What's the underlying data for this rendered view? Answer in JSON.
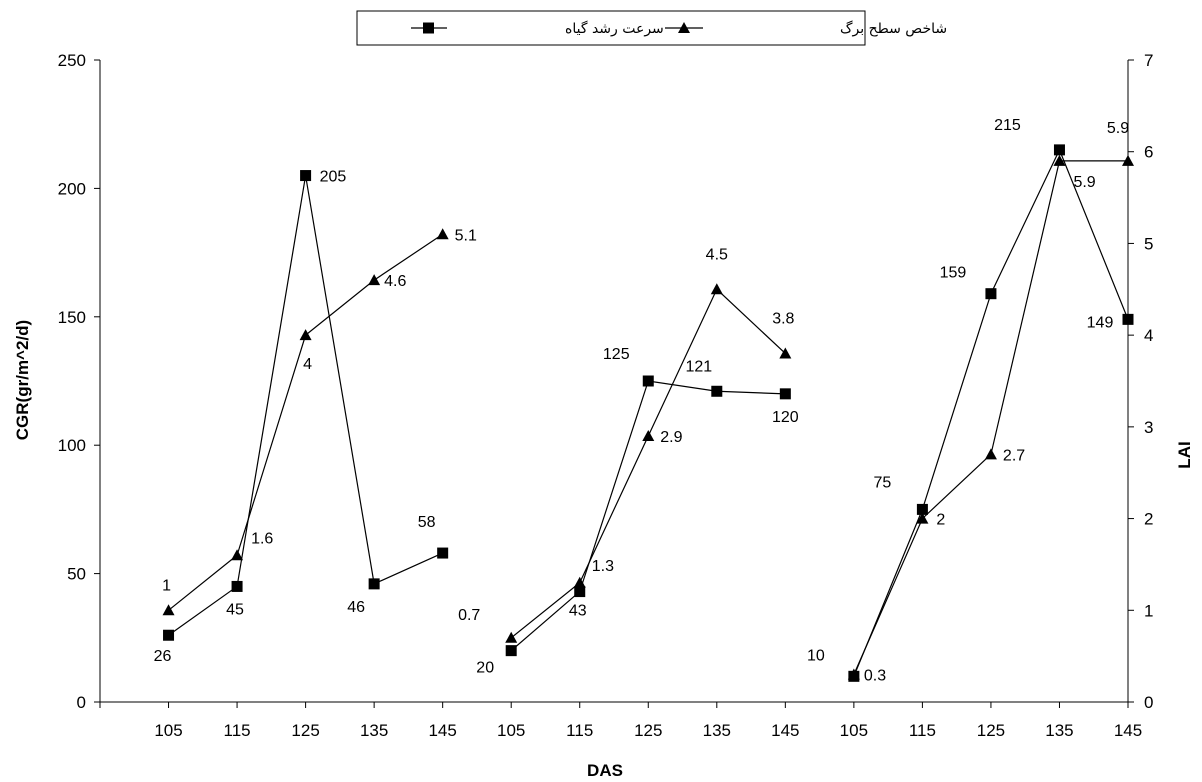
{
  "chart_data": {
    "type": "line",
    "xlabel": "DAS",
    "ylabel_left": "CGR(gr/m^2/d)",
    "ylabel_right": "LAI",
    "ylim_left": [
      0,
      250
    ],
    "ylim_right": [
      0,
      7
    ],
    "yticks_left": [
      "0",
      "50",
      "100",
      "150",
      "200",
      "250"
    ],
    "yticks_right": [
      "0",
      "1",
      "2",
      "3",
      "4",
      "5",
      "6",
      "7"
    ],
    "x_tick_labels": [
      "105",
      "115",
      "125",
      "135",
      "145"
    ],
    "legend": {
      "position": "top-center",
      "items": [
        {
          "label": "سرعت رشد گیاه",
          "marker": "square"
        },
        {
          "label": "شاخص سطح برگ",
          "marker": "triangle"
        }
      ]
    },
    "groups": [
      {
        "x": [
          105,
          115,
          125,
          135,
          145
        ],
        "cgr": [
          26,
          45,
          205,
          46,
          58
        ],
        "lai": [
          1,
          1.6,
          4,
          4.6,
          5.1
        ],
        "cgr_labels": [
          "26",
          "45",
          "205",
          "46",
          "58"
        ],
        "lai_labels": [
          "1",
          "1.6",
          "4",
          "4.6",
          "5.1"
        ]
      },
      {
        "x": [
          105,
          115,
          125,
          135,
          145
        ],
        "cgr": [
          20,
          43,
          125,
          121,
          120
        ],
        "lai": [
          0.7,
          1.3,
          2.9,
          4.5,
          3.8
        ],
        "cgr_labels": [
          "20",
          "43",
          "125",
          "121",
          "120"
        ],
        "lai_labels": [
          "0.7",
          "1.3",
          "2.9",
          "4.5",
          "3.8"
        ]
      },
      {
        "x": [
          105,
          115,
          125,
          135,
          145
        ],
        "cgr": [
          10,
          75,
          159,
          215,
          149
        ],
        "lai": [
          0.3,
          2,
          2.7,
          5.9,
          5.9
        ],
        "cgr_labels": [
          "10",
          "75",
          "159",
          "215",
          "149"
        ],
        "lai_labels": [
          "0.3",
          "2",
          "2.7",
          "5.9",
          "5.9"
        ]
      }
    ]
  }
}
